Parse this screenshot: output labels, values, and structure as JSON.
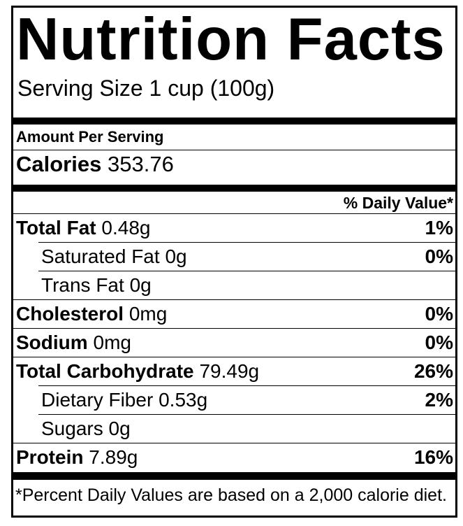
{
  "label": {
    "title": "Nutrition Facts",
    "serving_size": "Serving Size 1 cup (100g)",
    "amount_per_serving": "Amount Per Serving",
    "calories": {
      "label": "Calories",
      "value": "353.76"
    },
    "daily_value_header": "% Daily Value*",
    "rows": [
      {
        "name": "Total Fat",
        "amount": "0.48g",
        "daily_value": "1%",
        "bold": true,
        "indent": false
      },
      {
        "name": "Saturated Fat",
        "amount": "0g",
        "daily_value": "0%",
        "bold": false,
        "indent": true
      },
      {
        "name": "Trans Fat",
        "amount": "0g",
        "daily_value": "",
        "bold": false,
        "indent": true
      },
      {
        "name": "Cholesterol",
        "amount": "0mg",
        "daily_value": "0%",
        "bold": true,
        "indent": false
      },
      {
        "name": "Sodium",
        "amount": "0mg",
        "daily_value": "0%",
        "bold": true,
        "indent": false
      },
      {
        "name": "Total Carbohydrate",
        "amount": "79.49g",
        "daily_value": "26%",
        "bold": true,
        "indent": false
      },
      {
        "name": "Dietary Fiber",
        "amount": "0.53g",
        "daily_value": "2%",
        "bold": false,
        "indent": true
      },
      {
        "name": "Sugars",
        "amount": "0g",
        "daily_value": "",
        "bold": false,
        "indent": true
      },
      {
        "name": "Protein",
        "amount": "7.89g",
        "daily_value": "16%",
        "bold": true,
        "indent": false
      }
    ],
    "footnote": "*Percent Daily Values are based on a 2,000 calorie diet.",
    "colors": {
      "ink": "#000000",
      "background": "#ffffff"
    }
  }
}
